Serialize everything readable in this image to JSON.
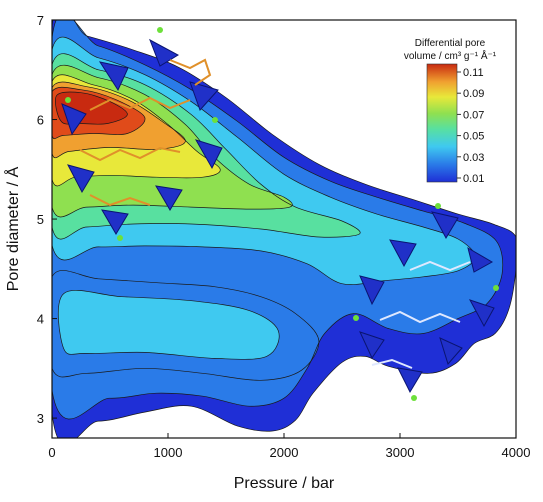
{
  "chart_data": {
    "type": "heatmap",
    "xlabel": "Pressure / bar",
    "ylabel": "Pore diameter / Å",
    "xlim": [
      0,
      4000
    ],
    "ylim": [
      2.8,
      7.0
    ],
    "x_ticks": [
      0,
      1000,
      2000,
      3000,
      4000
    ],
    "y_ticks": [
      3,
      4,
      5,
      6,
      7
    ],
    "colorbar": {
      "title_line1": "Differential pore",
      "title_line2": "volume / cm³ g⁻¹ Å⁻¹",
      "ticks": [
        "0.11",
        "0.09",
        "0.07",
        "0.05",
        "0.03",
        "0.01"
      ],
      "range": [
        0.01,
        0.115
      ]
    },
    "colorscale": [
      "#1f2fd6",
      "#2a7be8",
      "#3fc9f0",
      "#58e0a0",
      "#8fe050",
      "#e8e83a",
      "#f0a030",
      "#e04b1a",
      "#c82a10"
    ],
    "contours": [
      {
        "level": 0.012,
        "points": [
          [
            0,
            6.93
          ],
          [
            300,
            6.84
          ],
          [
            700,
            6.7
          ],
          [
            1100,
            6.52
          ],
          [
            1500,
            6.22
          ],
          [
            1900,
            5.85
          ],
          [
            2300,
            5.55
          ],
          [
            2700,
            5.35
          ],
          [
            3100,
            5.2
          ],
          [
            3500,
            5.05
          ],
          [
            3800,
            4.95
          ],
          [
            4000,
            4.82
          ],
          [
            4000,
            4.5
          ],
          [
            3940,
            4.1
          ],
          [
            3820,
            3.85
          ],
          [
            3640,
            3.75
          ],
          [
            3480,
            3.55
          ],
          [
            3250,
            3.45
          ],
          [
            2900,
            3.52
          ],
          [
            2700,
            3.62
          ],
          [
            2500,
            3.56
          ],
          [
            2250,
            3.25
          ],
          [
            2100,
            2.98
          ],
          [
            1900,
            2.87
          ],
          [
            1600,
            2.92
          ],
          [
            1200,
            3.12
          ],
          [
            800,
            3.06
          ],
          [
            400,
            2.97
          ],
          [
            0,
            3.05
          ]
        ]
      },
      {
        "level": 0.02,
        "points": [
          [
            0,
            6.82
          ],
          [
            400,
            6.74
          ],
          [
            800,
            6.55
          ],
          [
            1200,
            6.3
          ],
          [
            1600,
            5.98
          ],
          [
            2000,
            5.62
          ],
          [
            2400,
            5.38
          ],
          [
            2800,
            5.22
          ],
          [
            3200,
            5.08
          ],
          [
            3550,
            4.96
          ],
          [
            3830,
            4.78
          ],
          [
            3880,
            4.45
          ],
          [
            3750,
            4.15
          ],
          [
            3500,
            4.0
          ],
          [
            3200,
            3.85
          ],
          [
            2900,
            3.9
          ],
          [
            2600,
            4.05
          ],
          [
            2350,
            3.85
          ],
          [
            2200,
            3.5
          ],
          [
            2000,
            3.2
          ],
          [
            1700,
            3.12
          ],
          [
            1300,
            3.22
          ],
          [
            900,
            3.25
          ],
          [
            500,
            3.2
          ],
          [
            0,
            3.28
          ]
        ]
      },
      {
        "level": 0.03,
        "points": [
          [
            0,
            6.7
          ],
          [
            400,
            6.62
          ],
          [
            800,
            6.45
          ],
          [
            1200,
            6.18
          ],
          [
            1600,
            5.82
          ],
          [
            2000,
            5.45
          ],
          [
            2400,
            5.22
          ],
          [
            2800,
            5.05
          ],
          [
            3200,
            4.92
          ],
          [
            3500,
            4.8
          ],
          [
            3650,
            4.62
          ],
          [
            3500,
            4.48
          ],
          [
            3200,
            4.42
          ],
          [
            2850,
            4.38
          ],
          [
            2500,
            4.35
          ],
          [
            2200,
            4.55
          ],
          [
            1800,
            4.68
          ],
          [
            1300,
            4.72
          ],
          [
            800,
            4.73
          ],
          [
            400,
            4.72
          ],
          [
            0,
            4.74
          ]
        ]
      },
      {
        "level": 0.045,
        "points": [
          [
            0,
            6.55
          ],
          [
            400,
            6.5
          ],
          [
            800,
            6.35
          ],
          [
            1200,
            6.05
          ],
          [
            1500,
            5.7
          ],
          [
            1800,
            5.35
          ],
          [
            2100,
            5.12
          ],
          [
            2500,
            4.98
          ],
          [
            2650,
            4.85
          ],
          [
            2300,
            4.82
          ],
          [
            1800,
            4.9
          ],
          [
            1200,
            4.95
          ],
          [
            700,
            4.95
          ],
          [
            300,
            4.92
          ],
          [
            0,
            4.92
          ]
        ]
      },
      {
        "level": 0.06,
        "points": [
          [
            0,
            6.45
          ],
          [
            400,
            6.42
          ],
          [
            800,
            6.25
          ],
          [
            1150,
            5.95
          ],
          [
            1400,
            5.62
          ],
          [
            1700,
            5.35
          ],
          [
            2000,
            5.22
          ],
          [
            2050,
            5.12
          ],
          [
            1700,
            5.1
          ],
          [
            1200,
            5.12
          ],
          [
            700,
            5.14
          ],
          [
            300,
            5.12
          ],
          [
            0,
            5.12
          ]
        ]
      },
      {
        "level": 0.075,
        "points": [
          [
            0,
            6.38
          ],
          [
            350,
            6.35
          ],
          [
            700,
            6.2
          ],
          [
            1000,
            5.95
          ],
          [
            1250,
            5.68
          ],
          [
            1450,
            5.5
          ],
          [
            1300,
            5.42
          ],
          [
            900,
            5.42
          ],
          [
            500,
            5.44
          ],
          [
            200,
            5.42
          ],
          [
            0,
            5.4
          ]
        ]
      },
      {
        "level": 0.09,
        "points": [
          [
            0,
            6.32
          ],
          [
            300,
            6.33
          ],
          [
            650,
            6.2
          ],
          [
            950,
            5.98
          ],
          [
            1150,
            5.78
          ],
          [
            900,
            5.7
          ],
          [
            500,
            5.72
          ],
          [
            150,
            5.68
          ],
          [
            0,
            5.66
          ]
        ]
      },
      {
        "level": 0.1,
        "points": [
          [
            0,
            6.28
          ],
          [
            250,
            6.3
          ],
          [
            550,
            6.2
          ],
          [
            800,
            6.02
          ],
          [
            650,
            5.86
          ],
          [
            350,
            5.86
          ],
          [
            100,
            5.84
          ],
          [
            0,
            5.84
          ]
        ]
      },
      {
        "level": 0.11,
        "points": [
          [
            40,
            6.24
          ],
          [
            250,
            6.27
          ],
          [
            500,
            6.18
          ],
          [
            650,
            6.05
          ],
          [
            480,
            5.96
          ],
          [
            250,
            5.96
          ],
          [
            80,
            5.98
          ]
        ]
      }
    ],
    "lower_contours": [
      {
        "level": 0.025,
        "points": [
          [
            0,
            4.42
          ],
          [
            400,
            4.4
          ],
          [
            900,
            4.36
          ],
          [
            1400,
            4.32
          ],
          [
            1800,
            4.22
          ],
          [
            2100,
            4.05
          ],
          [
            2300,
            3.78
          ],
          [
            2150,
            3.48
          ],
          [
            1800,
            3.38
          ],
          [
            1300,
            3.45
          ],
          [
            800,
            3.5
          ],
          [
            300,
            3.45
          ],
          [
            0,
            3.5
          ]
        ]
      },
      {
        "level": 0.03,
        "points": [
          [
            100,
            4.25
          ],
          [
            600,
            4.22
          ],
          [
            1200,
            4.18
          ],
          [
            1700,
            4.08
          ],
          [
            1950,
            3.88
          ],
          [
            1850,
            3.62
          ],
          [
            1400,
            3.6
          ],
          [
            800,
            3.66
          ],
          [
            300,
            3.65
          ],
          [
            100,
            3.7
          ]
        ]
      }
    ]
  }
}
